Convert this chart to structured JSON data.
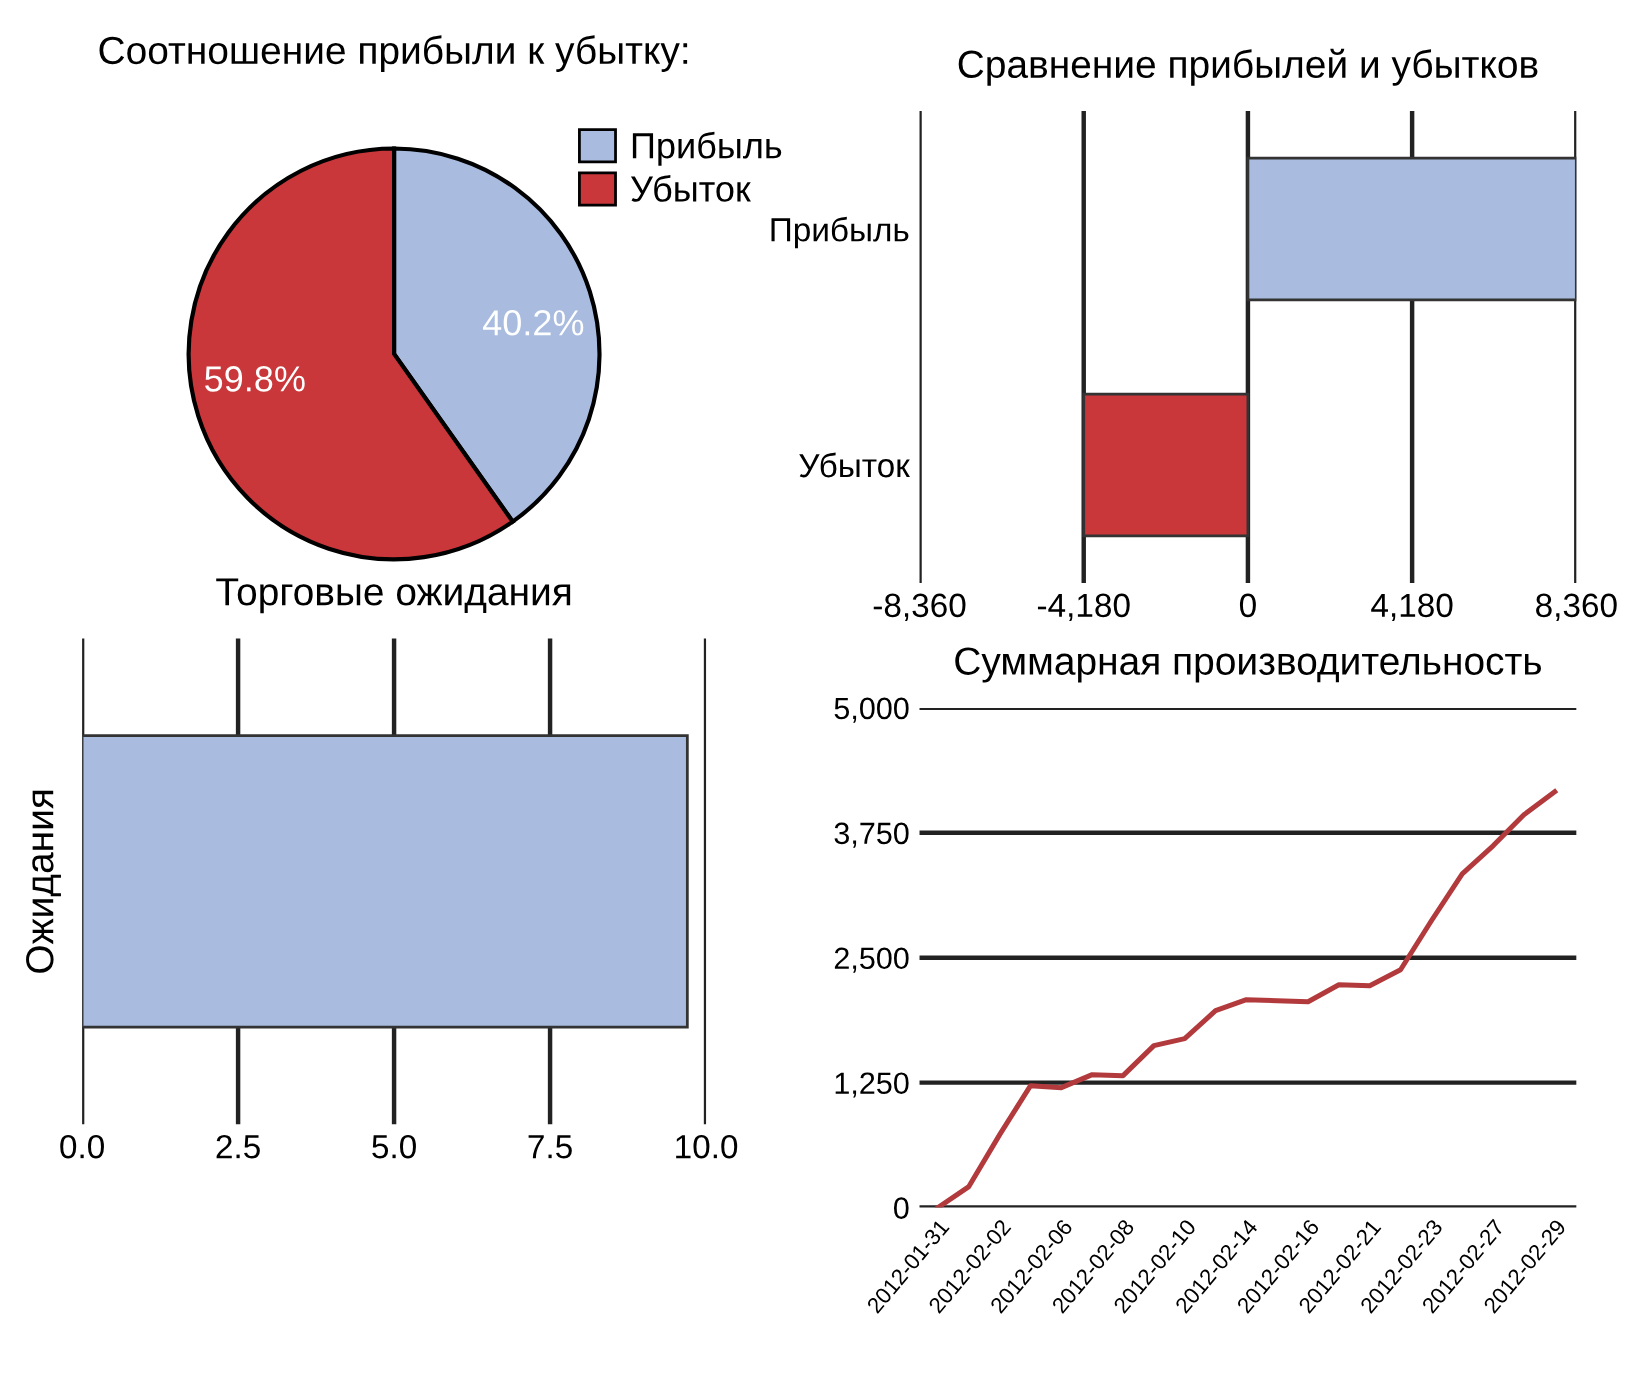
{
  "chart_data": [
    {
      "type": "pie",
      "title": "Соотношение прибыли к убытку:",
      "categories": [
        "Прибыль",
        "Убыток"
      ],
      "values": [
        40.2,
        59.8
      ],
      "value_labels": [
        "40.2%",
        "59.8%"
      ],
      "colors": [
        "#a9bcdf",
        "#c9373a"
      ],
      "legend": "top right"
    },
    {
      "type": "bar",
      "orientation": "horizontal",
      "title": "Сравнение прибылей и убытков",
      "categories": [
        "Прибыль",
        "Убыток"
      ],
      "values": [
        8360,
        -4180
      ],
      "colors": [
        "#a9bcdf",
        "#c9373a"
      ],
      "xlim": [
        -8360,
        8360
      ],
      "xticks": [
        {
          "value": -8360,
          "label": "-8,360"
        },
        {
          "value": -4180,
          "label": "-4,180"
        },
        0,
        {
          "value": 4180,
          "label": "4,180"
        },
        {
          "value": 8360,
          "label": "8,360"
        }
      ],
      "grid": "x"
    },
    {
      "type": "bar",
      "orientation": "horizontal",
      "title": "Торговые ожидания",
      "ylabel": "Ожидания",
      "categories": [
        null
      ],
      "values": [
        9.7
      ],
      "color": "#a9bcdf",
      "xlim": [
        0,
        10
      ],
      "xticks": [
        {
          "value": 0,
          "label": "0.0"
        },
        {
          "value": 2.5,
          "label": "2.5"
        },
        {
          "value": 5,
          "label": "5.0"
        },
        {
          "value": 7.5,
          "label": "7.5"
        },
        {
          "value": 10,
          "label": "10.0"
        }
      ],
      "grid": "x"
    },
    {
      "type": "line",
      "title": "Суммарная производительность",
      "categories": [
        "2012-01-31",
        null,
        "2012-02-02",
        null,
        "2012-02-06",
        null,
        "2012-02-08",
        null,
        "2012-02-10",
        null,
        "2012-02-14",
        null,
        "2012-02-16",
        null,
        "2012-02-21",
        null,
        "2012-02-23",
        null,
        "2012-02-27",
        null,
        "2012-02-29"
      ],
      "series": [
        {
          "color": "#b23a3c",
          "values": [
            0,
            210,
            730,
            1220,
            1200,
            1330,
            1320,
            1620,
            1690,
            1970,
            2080,
            2070,
            2060,
            2230,
            2220,
            2380,
            2870,
            3340,
            3620,
            3930,
            4160
          ]
        }
      ],
      "ylim": [
        0,
        5000
      ],
      "yticks": [
        0,
        {
          "value": 1250,
          "label": "1,250"
        },
        {
          "value": 2500,
          "label": "2,500"
        },
        {
          "value": 3750,
          "label": "3,750"
        },
        {
          "value": 5000,
          "label": "5,000"
        }
      ],
      "grid": "y"
    }
  ]
}
